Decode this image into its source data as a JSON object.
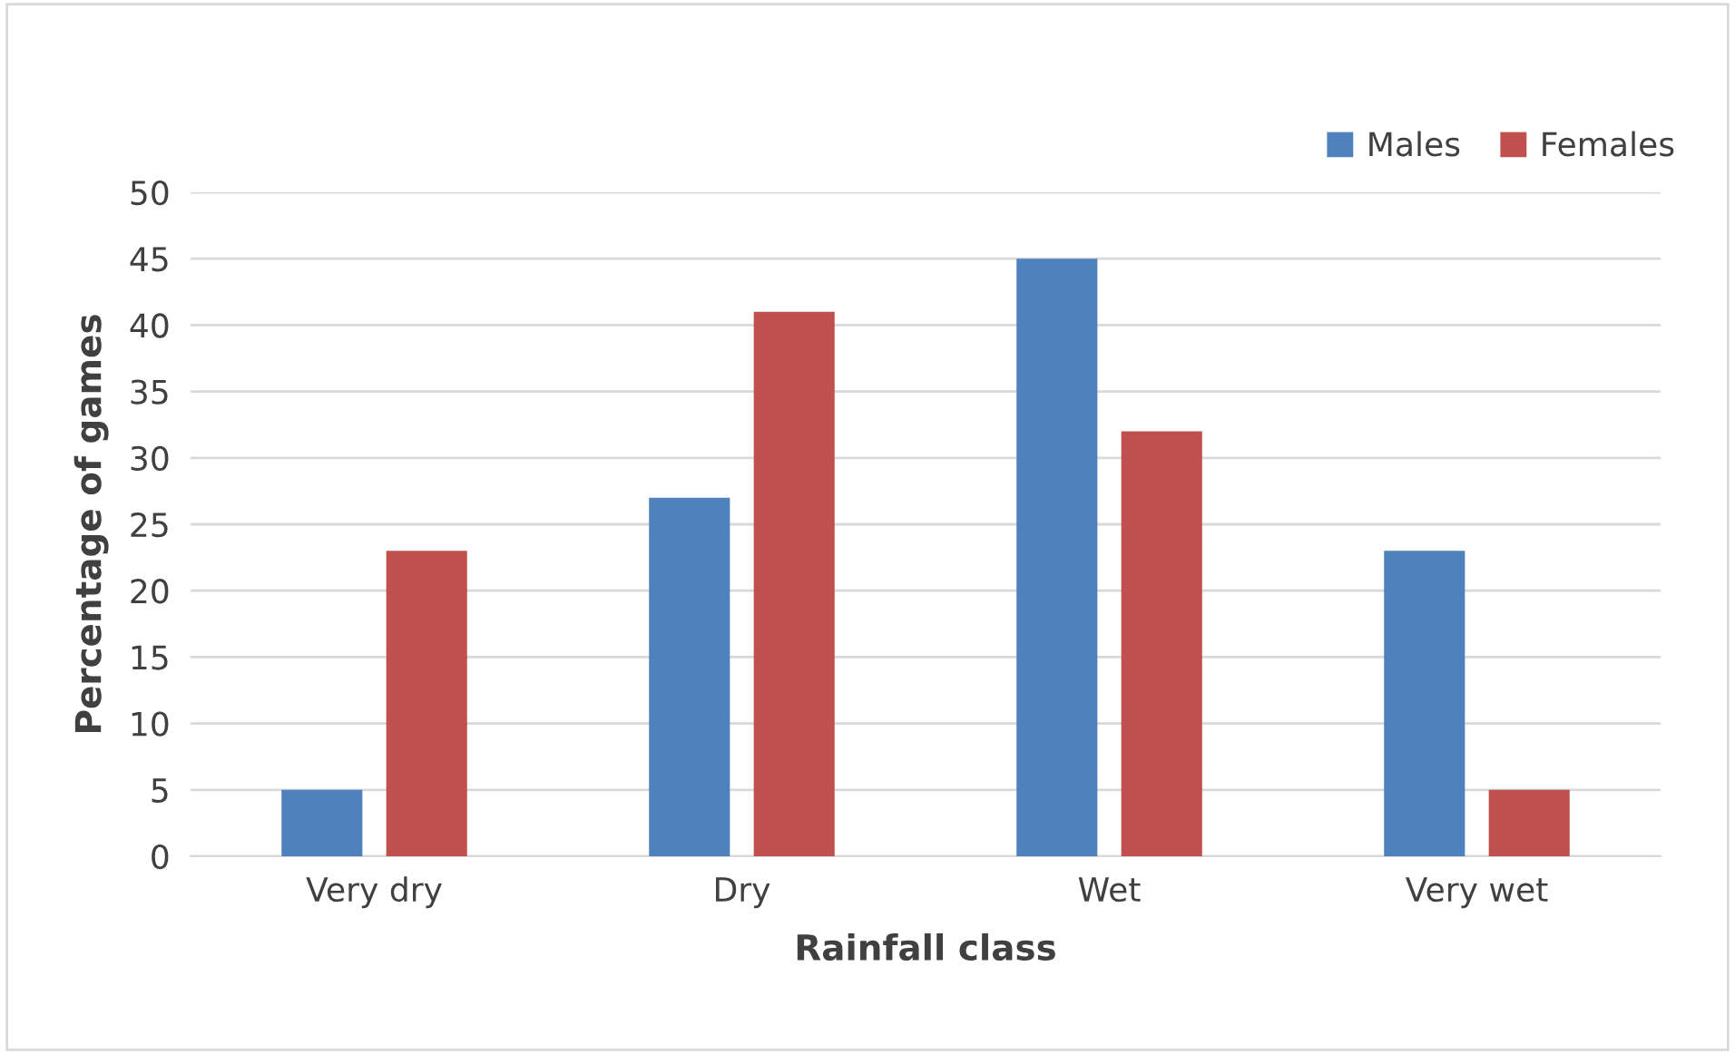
{
  "chart_data": {
    "type": "bar",
    "xlabel": "Rainfall class",
    "ylabel": "Percentage of games",
    "categories": [
      "Very dry",
      "Dry",
      "Wet",
      "Very wet"
    ],
    "series": [
      {
        "name": "Males",
        "color": "#4f81bd",
        "values": [
          5,
          27,
          45,
          23
        ]
      },
      {
        "name": "Females",
        "color": "#c0504d",
        "values": [
          23,
          41,
          32,
          5
        ]
      }
    ],
    "ylim": [
      0,
      50
    ],
    "yticks": [
      0,
      5,
      10,
      15,
      20,
      25,
      30,
      35,
      40,
      45,
      50
    ],
    "grid": "y",
    "legend": "top right"
  }
}
